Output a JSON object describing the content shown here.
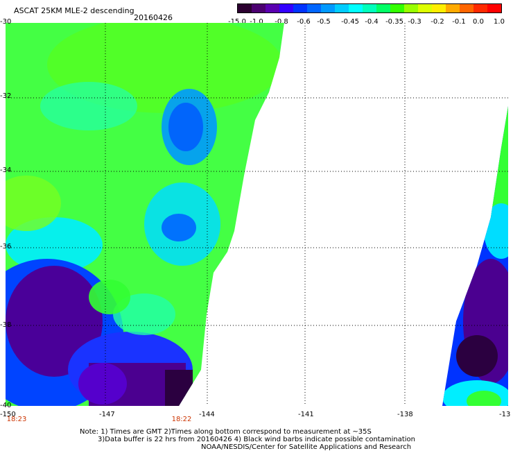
{
  "header": {
    "title": "ASCAT 25KM MLE-2 descending",
    "date": "20160426"
  },
  "colorbar": {
    "labels": [
      "-15.0",
      "-1.0",
      "-0.8",
      "-0.6",
      "-0.5",
      "-0.45",
      "-0.4",
      "-0.35",
      "-0.3",
      "-0.2",
      "-0.1",
      "0.0",
      "1.0"
    ],
    "colors": [
      "#2b0030",
      "#4b0070",
      "#5a00b0",
      "#3300ff",
      "#0033ff",
      "#0066ff",
      "#0099ff",
      "#00ccff",
      "#00ffff",
      "#00ffbb",
      "#00ff66",
      "#33ff00",
      "#99ff00",
      "#ddff00",
      "#ffee00",
      "#ffaa00",
      "#ff6600",
      "#ff2a00",
      "#ff0000"
    ]
  },
  "axes": {
    "lat_labels": [
      "-30",
      "-32",
      "-34",
      "-36",
      "-38",
      "-40"
    ],
    "lon_labels": [
      "-150",
      "-147",
      "-144",
      "-141",
      "-138",
      "-13"
    ]
  },
  "times": [
    "18:23",
    "18:22"
  ],
  "notes": {
    "line1": "Note: 1) Times are GMT 2)Times along bottom correspond to measurement at ~35S",
    "line2": "3)Data buffer is 22 hrs from 20160426 4) Black wind barbs indicate possible contamination",
    "line3": "NOAA/NESDIS/Center for Satellite Applications and Research"
  },
  "map_colors": {
    "green": "#33ff33",
    "lightgreen": "#66ff33",
    "cyan": "#00ffff",
    "blue": "#0033ff",
    "darkblue": "#3300cc",
    "purple": "#4b0080",
    "darkpurple": "#2b0040"
  }
}
